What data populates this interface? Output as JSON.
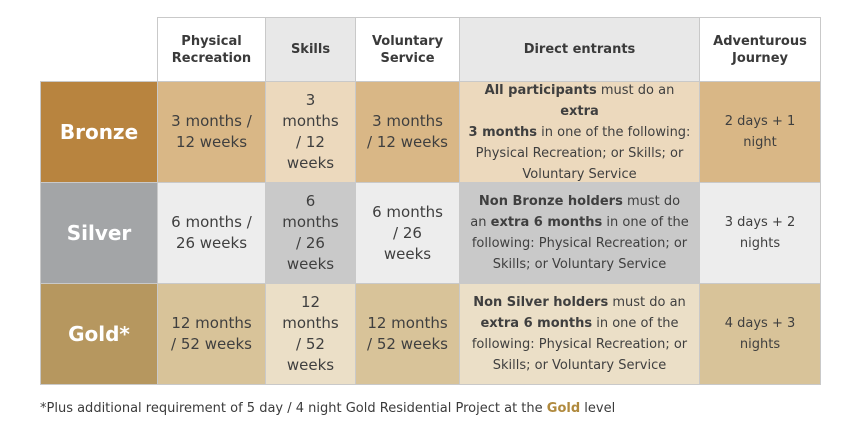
{
  "headers": [
    "Physical\nRecreation",
    "Skills",
    "Voluntary\nService",
    "Direct entrants",
    "Adventurous\nJourney"
  ],
  "rows": [
    {
      "level": "Bronze",
      "physical": "3 months /\n12 weeks",
      "skills": "3\nmonths\n/ 12\nweeks",
      "voluntary": "3 months\n/ 12 weeks",
      "direct": {
        "b1": "All participants",
        "t1": " must do an ",
        "b2": "extra\n3 months",
        "t2": " in one of the following:\nPhysical Recreation; or Skills; or\nVoluntary Service"
      },
      "journey": "2 days + 1\nnight"
    },
    {
      "level": "Silver",
      "physical": "6 months /\n26 weeks",
      "skills": "6\nmonths\n/ 26\nweeks",
      "voluntary": "6 months\n/ 26\nweeks",
      "direct": {
        "b1": "Non Bronze holders",
        "t1": " must do\nan ",
        "b2": "extra 6 months",
        "t2": " in one of the\nfollowing: Physical Recreation; or\nSkills; or Voluntary Service"
      },
      "journey": "3 days + 2\nnights"
    },
    {
      "level": "Gold*",
      "physical": "12 months\n/ 52 weeks",
      "skills": "12\nmonths\n/ 52\nweeks",
      "voluntary": "12 months\n/ 52 weeks",
      "direct": {
        "b1": "Non Silver holders",
        "t1": " must do an\n",
        "b2": "extra 6 months",
        "t2": " in one of the\nfollowing: Physical Recreation; or\nSkills; or Voluntary Service"
      },
      "journey": "4 days + 3\nnights"
    }
  ],
  "footnote": {
    "pre": "*Plus additional requirement of 5 day / 4 night Gold Residential Project at the ",
    "gold": "Gold",
    "post": " level"
  },
  "colors": {
    "bronze": "#b8843f",
    "silver": "#a3a5a7",
    "gold": "#b6975f"
  }
}
